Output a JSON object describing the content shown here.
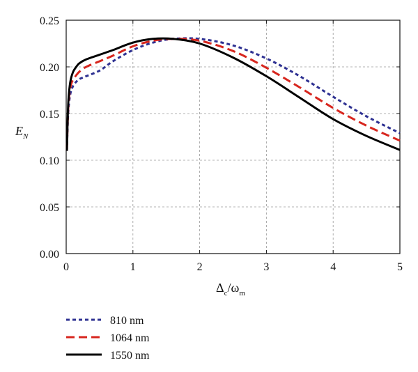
{
  "chart_data": {
    "type": "line",
    "xlabel_main": "Δ",
    "xlabel_sub1": "c",
    "xlabel_mid": "/ω",
    "xlabel_sub2": "m",
    "ylabel_main": "E",
    "ylabel_sub": "N",
    "xlim": [
      0,
      5
    ],
    "ylim": [
      0,
      0.25
    ],
    "x_ticks": [
      0,
      1,
      2,
      3,
      4,
      5
    ],
    "x_tick_labels": [
      "0",
      "1",
      "2",
      "3",
      "4",
      "5"
    ],
    "y_ticks": [
      0,
      0.05,
      0.1,
      0.15,
      0.2,
      0.25
    ],
    "y_tick_labels": [
      "0.00",
      "0.05",
      "0.10",
      "0.15",
      "0.20",
      "0.25"
    ],
    "grid": true,
    "legend_position": "bottom-left, below plot",
    "series": [
      {
        "name": "810 nm",
        "color": "#2e3192",
        "style": "dotted",
        "x": [
          0.01,
          0.03,
          0.06,
          0.1,
          0.15,
          0.2,
          0.3,
          0.5,
          0.7,
          1.0,
          1.3,
          1.6,
          2.0,
          2.5,
          3.0,
          3.5,
          4.0,
          4.5,
          5.0
        ],
        "y": [
          0.11,
          0.15,
          0.17,
          0.179,
          0.184,
          0.187,
          0.19,
          0.196,
          0.206,
          0.218,
          0.226,
          0.23,
          0.23,
          0.223,
          0.209,
          0.19,
          0.168,
          0.147,
          0.129
        ]
      },
      {
        "name": "1064 nm",
        "color": "#d7261e",
        "style": "dashed",
        "x": [
          0.01,
          0.03,
          0.06,
          0.1,
          0.15,
          0.2,
          0.3,
          0.5,
          0.7,
          1.0,
          1.3,
          1.6,
          2.0,
          2.5,
          3.0,
          3.5,
          4.0,
          4.5,
          5.0
        ],
        "y": [
          0.11,
          0.155,
          0.177,
          0.186,
          0.191,
          0.195,
          0.2,
          0.206,
          0.212,
          0.222,
          0.228,
          0.23,
          0.228,
          0.217,
          0.199,
          0.178,
          0.156,
          0.137,
          0.121
        ]
      },
      {
        "name": "1550 nm",
        "color": "#000000",
        "style": "solid",
        "x": [
          0.01,
          0.03,
          0.06,
          0.1,
          0.15,
          0.2,
          0.3,
          0.5,
          0.7,
          1.0,
          1.3,
          1.6,
          2.0,
          2.5,
          3.0,
          3.5,
          4.0,
          4.5,
          5.0
        ],
        "y": [
          0.11,
          0.16,
          0.183,
          0.194,
          0.2,
          0.204,
          0.208,
          0.213,
          0.218,
          0.226,
          0.23,
          0.23,
          0.225,
          0.21,
          0.19,
          0.167,
          0.144,
          0.126,
          0.111
        ]
      }
    ]
  }
}
